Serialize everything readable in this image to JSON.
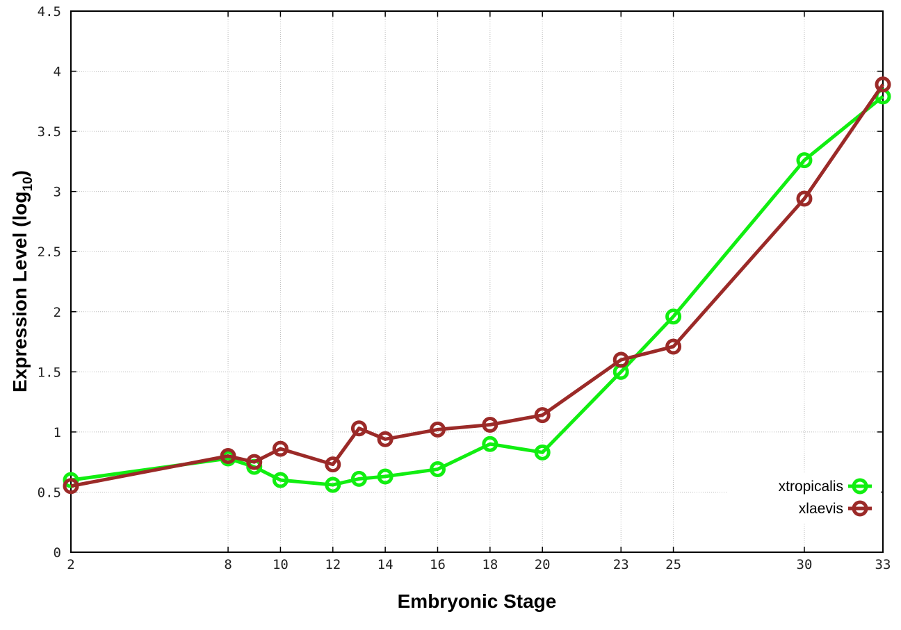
{
  "chart_data": {
    "type": "line",
    "title": "",
    "xlabel": "Embryonic Stage",
    "ylabel": {
      "main": "Expression Level (log",
      "sub": "10",
      "end": ")"
    },
    "xlim": [
      2,
      33
    ],
    "ylim": [
      0,
      4.5
    ],
    "xticks": [
      2,
      8,
      10,
      12,
      14,
      16,
      18,
      20,
      23,
      25,
      30,
      33
    ],
    "ytick_labels": [
      "0",
      "0.5",
      "1",
      "1.5",
      "2",
      "2.5",
      "3",
      "3.5",
      "4",
      "4.5"
    ],
    "yticks": [
      0,
      0.5,
      1,
      1.5,
      2,
      2.5,
      3,
      3.5,
      4,
      4.5
    ],
    "grid": true,
    "legend_position": "bottom-right",
    "x": [
      2,
      8,
      9,
      10,
      12,
      13,
      14,
      16,
      18,
      20,
      23,
      25,
      30,
      33
    ],
    "series": [
      {
        "name": "xtropicalis",
        "color": "#11ee11",
        "values": [
          0.6,
          0.78,
          0.71,
          0.6,
          0.56,
          0.61,
          0.63,
          0.69,
          0.9,
          0.83,
          1.5,
          1.96,
          3.26,
          3.79
        ]
      },
      {
        "name": "xlaevis",
        "color": "#9b2a28",
        "values": [
          0.55,
          0.8,
          0.75,
          0.86,
          0.73,
          1.03,
          0.94,
          1.02,
          1.06,
          1.14,
          1.6,
          1.71,
          2.94,
          3.89
        ]
      }
    ]
  }
}
